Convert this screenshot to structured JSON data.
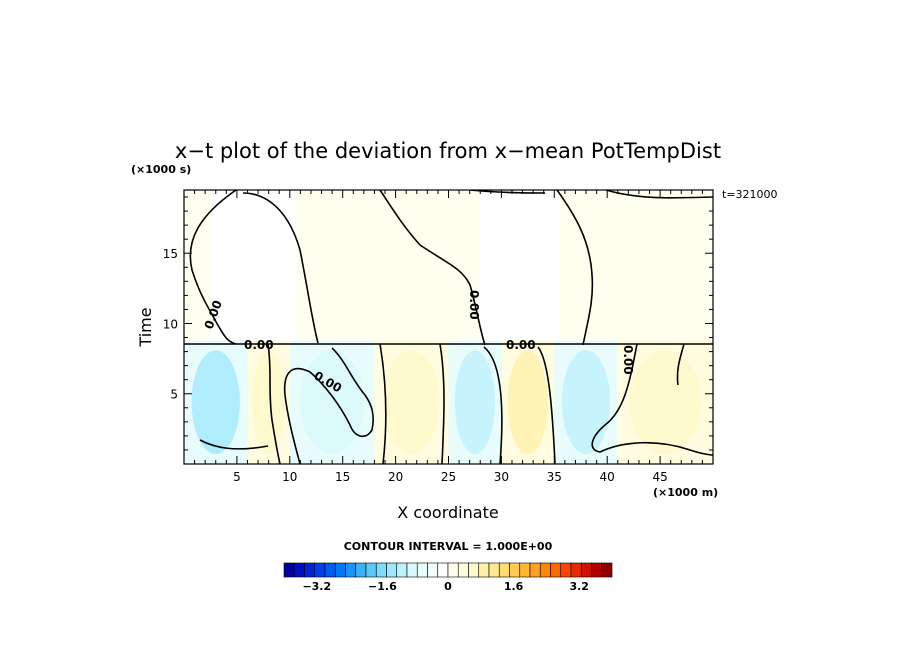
{
  "chart_data": {
    "type": "heatmap",
    "title": "x−t plot of the deviation from x−mean PotTempDist",
    "xlabel": "X coordinate",
    "ylabel": "Time",
    "x_unit": "(×1000 m)",
    "y_unit": "(×1000 s)",
    "annotation": "t=321000",
    "contour_interval_label": "CONTOUR INTERVAL = 1.000E+00",
    "contour_labels": [
      "0.00",
      "0.00",
      "0.00",
      "0.00",
      "0.00",
      "0.00"
    ],
    "xlim": [
      0,
      50
    ],
    "ylim": [
      0,
      19.5
    ],
    "xticks": [
      5,
      10,
      15,
      20,
      25,
      30,
      35,
      40,
      45
    ],
    "yticks": [
      5,
      10,
      15
    ],
    "upper_region": {
      "y_range": [
        8.8,
        19.5
      ],
      "cells": [
        {
          "x": [
            0,
            2.5
          ],
          "value": 0.15
        },
        {
          "x": [
            2.5,
            10.5
          ],
          "value": -0.2
        },
        {
          "x": [
            10.5,
            20
          ],
          "value": 0.15
        },
        {
          "x": [
            20,
            28
          ],
          "value": 0.15
        },
        {
          "x": [
            28,
            35.5
          ],
          "value": -0.2
        },
        {
          "x": [
            35.5,
            50
          ],
          "value": 0.15
        }
      ]
    },
    "lower_region": {
      "y_range": [
        0,
        8.8
      ],
      "bands": [
        {
          "x": [
            0,
            6
          ],
          "value": -1.3
        },
        {
          "x": [
            6,
            10
          ],
          "value": 0.6
        },
        {
          "x": [
            10,
            18
          ],
          "value": -1.0
        },
        {
          "x": [
            18,
            25
          ],
          "value": 0.7
        },
        {
          "x": [
            25,
            30
          ],
          "value": -1.2
        },
        {
          "x": [
            30,
            35
          ],
          "value": 0.9
        },
        {
          "x": [
            35,
            41
          ],
          "value": -1.1
        },
        {
          "x": [
            41,
            50
          ],
          "value": 0.6
        }
      ]
    },
    "colorbar": {
      "range": [
        -4,
        4
      ],
      "ticks": [
        "−3.2",
        "−1.6",
        "0",
        "1.6",
        "3.2"
      ],
      "tick_values": [
        -3.2,
        -1.6,
        0,
        1.6,
        3.2
      ],
      "colors": [
        "#0000a0",
        "#0010c0",
        "#0024d8",
        "#0040e8",
        "#005cf0",
        "#0078f4",
        "#1a94f8",
        "#3cb0f8",
        "#5cc8fa",
        "#7cdcfc",
        "#9ce8fc",
        "#bcf2fc",
        "#d8f8fc",
        "#e8fcfc",
        "#f4fefe",
        "#ffffff",
        "#fffff0",
        "#fffce0",
        "#fff8c8",
        "#fff0a8",
        "#ffe890",
        "#ffdc70",
        "#ffcc50",
        "#ffb830",
        "#ffa020",
        "#ff8800",
        "#ff6800",
        "#f84800",
        "#e82800",
        "#d01000",
        "#b00000",
        "#900000"
      ]
    }
  }
}
